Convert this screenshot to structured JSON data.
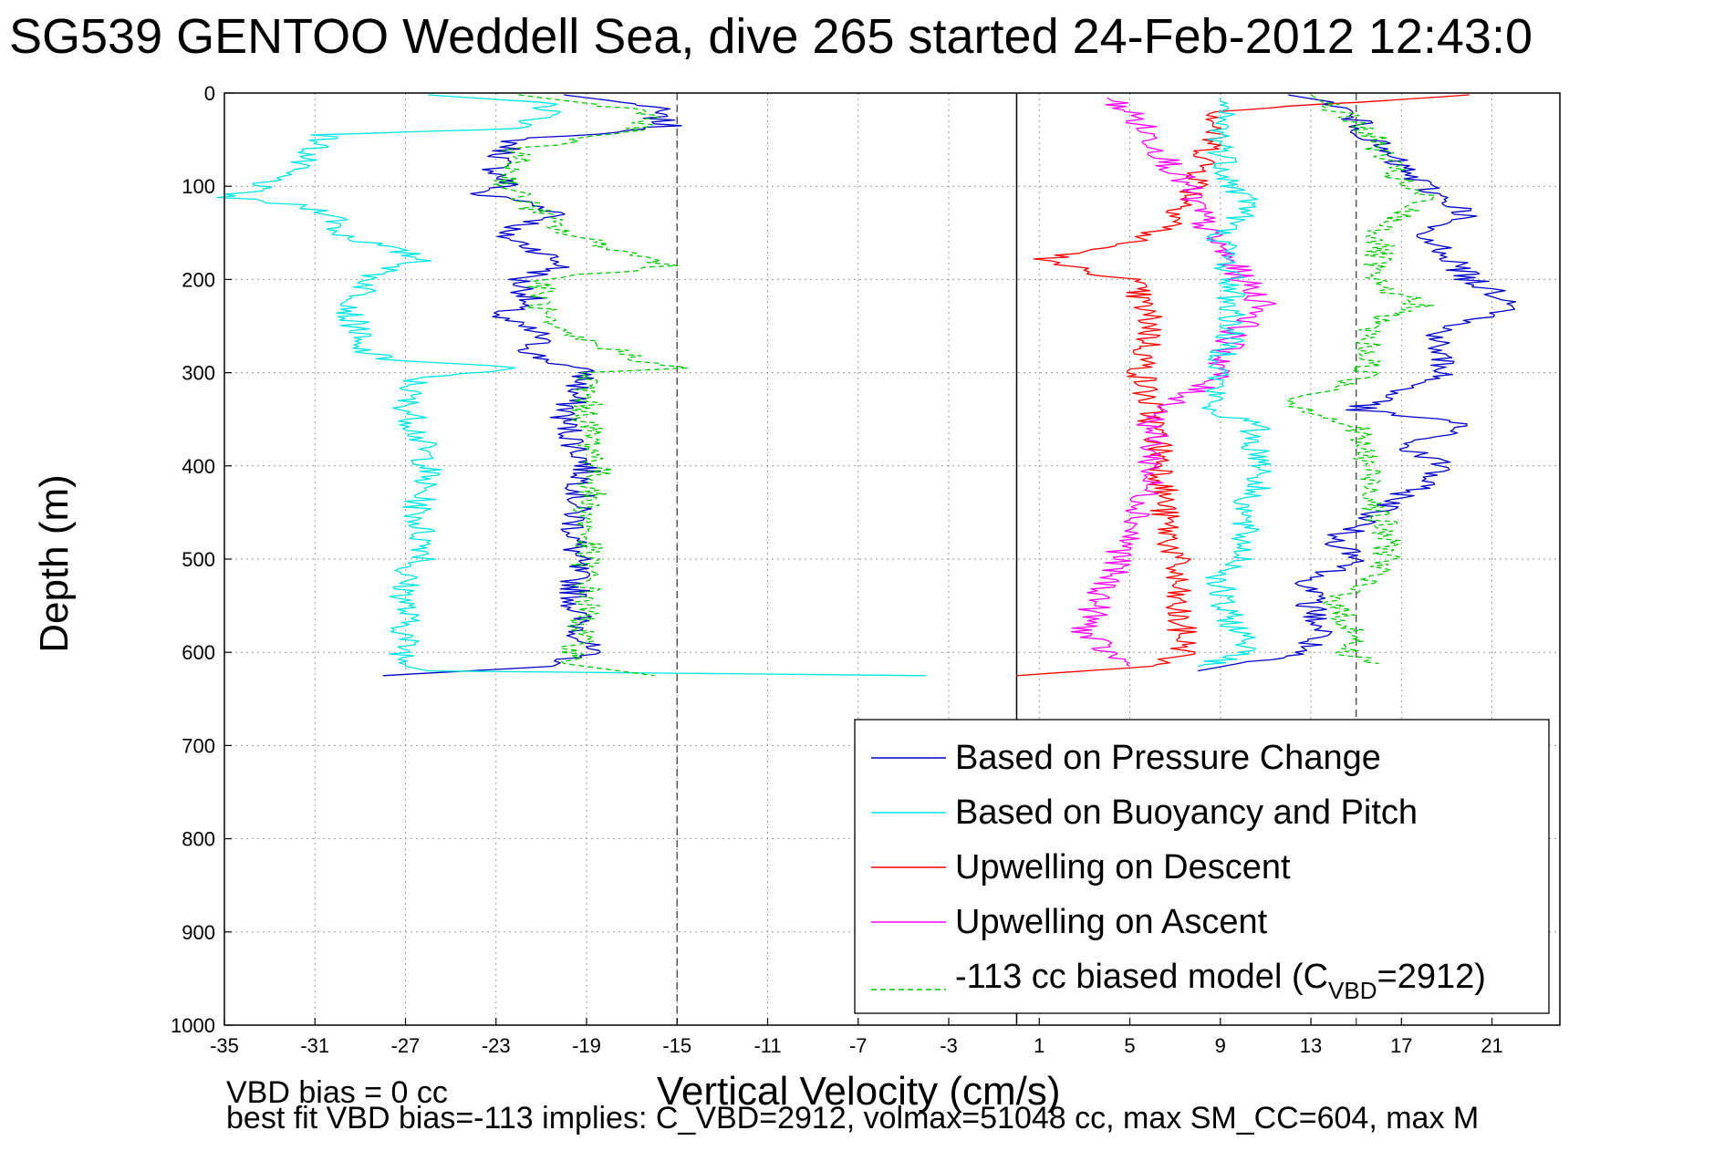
{
  "chart_data": {
    "type": "line",
    "title": "SG539 GENTOO Weddell Sea, dive 265 started 24-Feb-2012 12:43:0",
    "xlabel": "Vertical Velocity (cm/s)",
    "ylabel": "Depth (m)",
    "xlim": [
      -35,
      24
    ],
    "ylim": [
      1000,
      0
    ],
    "y_reversed": true,
    "grid": true,
    "xticks": [
      "-35",
      "-31",
      "-27",
      "-23",
      "-19",
      "-15",
      "-11",
      "-7",
      "-3",
      "1",
      "5",
      "9",
      "13",
      "17",
      "21"
    ],
    "yticks": [
      "0",
      "100",
      "200",
      "300",
      "400",
      "500",
      "600",
      "700",
      "800",
      "900",
      "1000"
    ],
    "vlines": [
      {
        "x": -15,
        "style": "dashed",
        "color": "#555555"
      },
      {
        "x": 0,
        "style": "solid",
        "color": "#000000"
      },
      {
        "x": 15,
        "style": "dashed",
        "color": "#555555"
      }
    ],
    "legend_position": "lower-right",
    "series": [
      {
        "name": "Based on Pressure Change",
        "color": "#0000cc",
        "style": "solid",
        "depth": [
          2,
          8,
          15,
          25,
          35,
          42,
          48,
          60,
          80,
          100,
          108,
          115,
          130,
          150,
          170,
          185,
          200,
          220,
          240,
          260,
          280,
          300,
          320,
          350,
          400,
          450,
          500,
          550,
          600,
          615,
          625
        ],
        "values": [
          -20,
          -18,
          -16,
          -16,
          -15.5,
          -17,
          -22,
          -22.5,
          -23,
          -22.5,
          -24,
          -22,
          -20,
          -23,
          -21,
          -20,
          -22,
          -21.5,
          -23,
          -21,
          -21.5,
          -19,
          -19.5,
          -20,
          -19,
          -19.5,
          -19.5,
          -19.5,
          -19,
          -20.5,
          -28
        ]
      },
      {
        "name": "Based on Buoyancy and Pitch",
        "color": "#00e5e5",
        "style": "solid",
        "depth": [
          2,
          10,
          20,
          38,
          45,
          60,
          80,
          95,
          105,
          112,
          120,
          130,
          150,
          165,
          180,
          190,
          200,
          220,
          240,
          255,
          270,
          285,
          295,
          305,
          330,
          360,
          400,
          450,
          500,
          510,
          550,
          600,
          615,
          620,
          625
        ],
        "values": [
          -26,
          -21,
          -20.5,
          -22,
          -30.5,
          -31,
          -32,
          -33,
          -34,
          -35,
          -32,
          -30,
          -30,
          -28,
          -26,
          -28,
          -28.5,
          -29,
          -29.5,
          -29,
          -29.5,
          -28,
          -22,
          -26.5,
          -27,
          -26.5,
          -26,
          -26.5,
          -26,
          -27,
          -27,
          -27,
          -27,
          -26,
          -4
        ]
      },
      {
        "name": "Upwelling on Descent",
        "color": "#ff0000",
        "style": "solid",
        "depth": [
          2,
          20,
          60,
          100,
          140,
          160,
          180,
          200,
          250,
          300,
          350,
          400,
          450,
          500,
          550,
          600,
          615,
          625
        ],
        "values": [
          20,
          9,
          8.5,
          8,
          7,
          5,
          1,
          5,
          6,
          5.5,
          6,
          6.5,
          6.5,
          7,
          7,
          7.5,
          6,
          0
        ]
      },
      {
        "name": "Upwelling on Ascent",
        "color": "#ff00ff",
        "style": "solid",
        "depth": [
          5,
          20,
          50,
          100,
          150,
          200,
          230,
          260,
          300,
          350,
          400,
          450,
          500,
          550,
          580,
          600,
          615
        ],
        "values": [
          4,
          5,
          6,
          7.5,
          8.5,
          10,
          11,
          9.5,
          9,
          6,
          6,
          5.5,
          4.5,
          3.5,
          3,
          4,
          5
        ]
      },
      {
        "name": "-113 cc biased model (C_VBD=2912)",
        "legend_main": "-113 cc biased model (C",
        "legend_sub": "VBD",
        "legend_tail": "=2912)",
        "color": "#00cc00",
        "style": "dashed",
        "depth": [
          2,
          20,
          40,
          60,
          100,
          150,
          180,
          185,
          200,
          250,
          290,
          295,
          300,
          350,
          400,
          450,
          500,
          550,
          600,
          612,
          625
        ],
        "values": [
          -22,
          -16,
          -17,
          -22,
          -22.5,
          -20,
          -16,
          -15,
          -21,
          -21,
          -16,
          -15,
          -19,
          -19,
          -18.5,
          -19,
          -19,
          -19,
          -19.5,
          -20,
          -16
        ]
      },
      {
        "name": "",
        "color": "#0000cc",
        "style": "solid",
        "depth": [
          2,
          10,
          30,
          60,
          80,
          100,
          130,
          150,
          170,
          200,
          230,
          250,
          270,
          300,
          340,
          355,
          380,
          400,
          450,
          480,
          500,
          520,
          550,
          580,
          600,
          620
        ],
        "values": [
          12,
          14,
          15,
          16,
          17,
          18,
          20,
          17.5,
          19,
          20,
          22.5,
          19,
          18.5,
          19,
          15,
          20,
          17,
          19,
          16,
          14,
          15.5,
          13,
          13,
          13.5,
          12.5,
          8
        ]
      },
      {
        "name": "",
        "color": "#00e5e5",
        "style": "solid",
        "depth": [
          5,
          50,
          100,
          120,
          150,
          200,
          250,
          300,
          340,
          355,
          380,
          400,
          450,
          500,
          520,
          550,
          600,
          615
        ],
        "values": [
          9,
          9,
          9.5,
          10.5,
          9,
          9.5,
          9.5,
          9,
          8.5,
          10.5,
          10.5,
          11,
          10,
          10,
          9,
          9,
          10.5,
          8
        ]
      },
      {
        "name": "",
        "color": "#00cc00",
        "style": "dashed",
        "depth": [
          2,
          40,
          100,
          110,
          150,
          170,
          200,
          230,
          240,
          260,
          300,
          320,
          330,
          360,
          400,
          450,
          500,
          550,
          580,
          600,
          612
        ],
        "values": [
          13,
          15.5,
          17,
          18,
          16,
          16,
          15.5,
          18,
          16,
          15.5,
          15.5,
          14,
          12,
          15,
          15.5,
          16,
          16.5,
          14,
          15,
          14.5,
          16
        ]
      }
    ]
  },
  "footer": {
    "bias_text": "VBD bias = 0 cc",
    "fit_text": "best fit VBD bias=-113 implies: C_VBD=2912, volmax=51048 cc, max SM_CC=604, max M"
  }
}
